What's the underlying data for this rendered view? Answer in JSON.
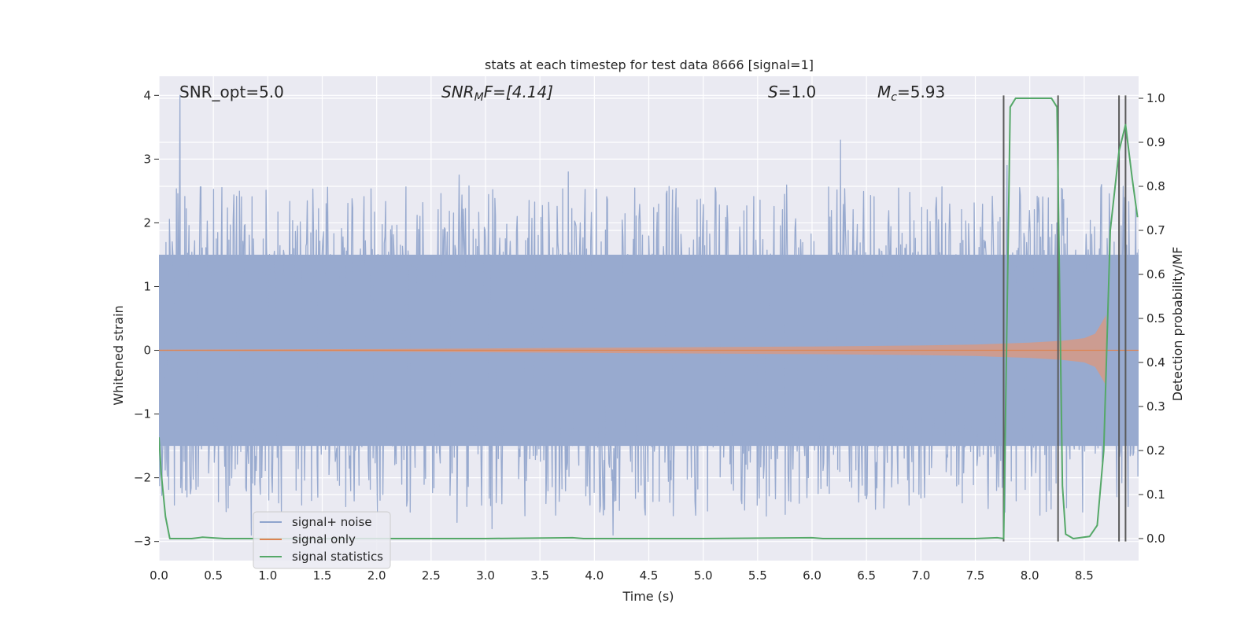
{
  "chart_data": {
    "type": "line",
    "title": "stats at each timestep for test data 8666 [signal=1]",
    "xlabel": "Time (s)",
    "ylabel": "Whitened strain",
    "ylabel_right": "Detection probability/MF",
    "xlim": [
      0.0,
      9.0
    ],
    "ylim": [
      -3.3,
      4.3
    ],
    "ylim_right": [
      -0.05,
      1.05
    ],
    "grid": true,
    "x_ticks": [
      "0.0",
      "0.5",
      "1.0",
      "1.5",
      "2.0",
      "2.5",
      "3.0",
      "3.5",
      "4.0",
      "4.5",
      "5.0",
      "5.5",
      "6.0",
      "6.5",
      "7.0",
      "7.5",
      "8.0",
      "8.5"
    ],
    "x_tick_values": [
      0,
      0.5,
      1,
      1.5,
      2,
      2.5,
      3,
      3.5,
      4,
      4.5,
      5,
      5.5,
      6,
      6.5,
      7,
      7.5,
      8,
      8.5
    ],
    "y_ticks_left": [
      "−3",
      "−2",
      "−1",
      "0",
      "1",
      "2",
      "3",
      "4"
    ],
    "y_tick_values_left": [
      -3,
      -2,
      -1,
      0,
      1,
      2,
      3,
      4
    ],
    "y_ticks_right": [
      "0.0",
      "0.1",
      "0.2",
      "0.3",
      "0.4",
      "0.5",
      "0.6",
      "0.7",
      "0.8",
      "0.9",
      "1.0"
    ],
    "y_tick_values_right": [
      0,
      0.1,
      0.2,
      0.3,
      0.4,
      0.5,
      0.6,
      0.7,
      0.8,
      0.9,
      1.0
    ],
    "annotations": {
      "snr_opt": "SNR_opt=5.0",
      "snr_mf_sym": "SNR",
      "snr_mf_sub": "M",
      "snr_mf_rest": "F=[4.14]",
      "s_sym": "S",
      "s_val": "=1.0",
      "mc_sym": "M",
      "mc_sub": "c",
      "mc_val": "=5.93"
    },
    "legend": {
      "placement": "lower-left",
      "entries": [
        {
          "label": "signal+ noise",
          "color": "#4c72b0"
        },
        {
          "label": "signal only",
          "color": "#dd8452"
        },
        {
          "label": "signal statistics",
          "color": "#55a868"
        }
      ]
    },
    "noise_envelope": {
      "name": "signal+ noise",
      "color": "#98aacf",
      "core_band": [
        -1.5,
        1.5
      ],
      "typical_peak_max": 2.6,
      "typical_peak_min": -2.6,
      "spike_x": [
        0.19,
        2.76,
        3.76,
        6.26,
        7.79,
        8.66,
        4.17,
        3.06,
        0.85,
        2.74,
        5.58
      ],
      "spike_y": [
        4.0,
        2.75,
        2.8,
        3.3,
        2.9,
        2.6,
        -2.9,
        -2.8,
        -2.9,
        -2.7,
        -2.6
      ]
    },
    "signal_envelope": {
      "name": "signal only",
      "color": "#d19a8a",
      "x": [
        0.0,
        1.0,
        2.0,
        3.0,
        4.0,
        5.0,
        6.0,
        7.0,
        7.5,
        8.0,
        8.3,
        8.5,
        8.6,
        8.65,
        8.7,
        8.71,
        9.0
      ],
      "amplitude": [
        0.01,
        0.015,
        0.02,
        0.03,
        0.04,
        0.05,
        0.06,
        0.075,
        0.09,
        0.12,
        0.15,
        0.19,
        0.26,
        0.4,
        0.55,
        0.0,
        0.0
      ]
    },
    "series": [
      {
        "name": "signal statistics",
        "axis": "right",
        "color": "#55a868",
        "x": [
          0.0,
          0.02,
          0.06,
          0.1,
          0.3,
          0.4,
          0.6,
          1.0,
          2.0,
          3.0,
          3.8,
          3.9,
          4.5,
          5.0,
          6.0,
          6.1,
          7.0,
          7.5,
          7.7,
          7.76,
          7.82,
          7.87,
          8.0,
          8.1,
          8.2,
          8.25,
          8.3,
          8.33,
          8.4,
          8.55,
          8.62,
          8.68,
          8.74,
          8.82,
          8.88,
          8.94,
          8.99
        ],
        "y": [
          0.23,
          0.15,
          0.05,
          0.0,
          0.0,
          0.003,
          0.0,
          0.0,
          0.0,
          0.0,
          0.002,
          0.0,
          0.0,
          0.0,
          0.002,
          0.0,
          0.0,
          0.0,
          0.002,
          0.0,
          0.98,
          1.0,
          1.0,
          1.0,
          1.0,
          0.98,
          0.12,
          0.01,
          0.0,
          0.005,
          0.03,
          0.2,
          0.7,
          0.88,
          0.94,
          0.82,
          0.73
        ]
      }
    ],
    "vertical_lines": {
      "color": "#5a5a5a",
      "x": [
        7.76,
        8.26,
        8.82,
        8.88
      ],
      "y_from": -3.0,
      "y_to": 4.0
    }
  }
}
